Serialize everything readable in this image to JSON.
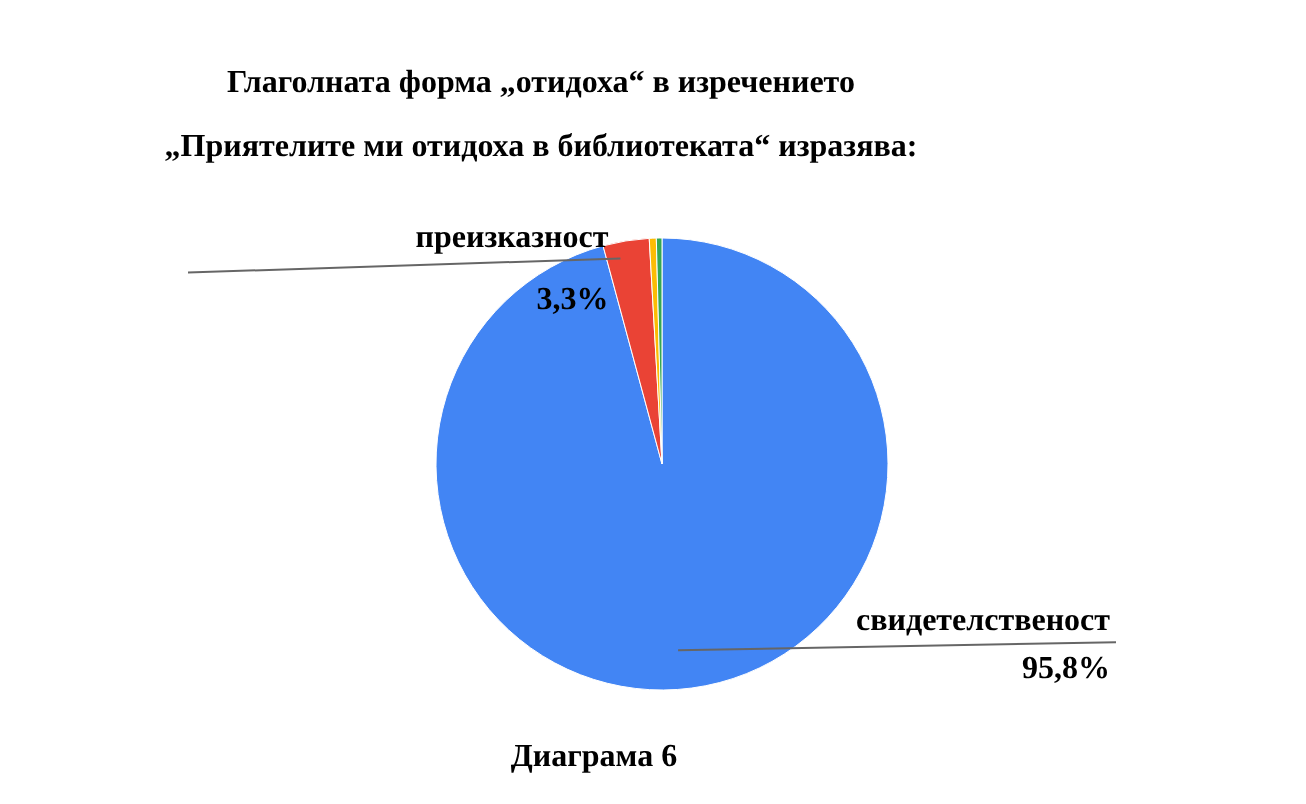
{
  "chart_data": {
    "type": "pie",
    "title": "Глаголната форма „отидоха“ в изречението\n„Приятелите ми отидоха в библиотеката“ изразява:",
    "categories": [
      "свидетелственост",
      "преизказност",
      null,
      null
    ],
    "values": [
      95.8,
      3.3,
      0.5,
      0.4
    ],
    "colors": [
      "#4285f4",
      "#ea4335",
      "#fbbc04",
      "#34a853"
    ],
    "value_labels": [
      "95,8%",
      "3,3%",
      null,
      null
    ],
    "annotations": [
      "Диаграма 6"
    ]
  }
}
